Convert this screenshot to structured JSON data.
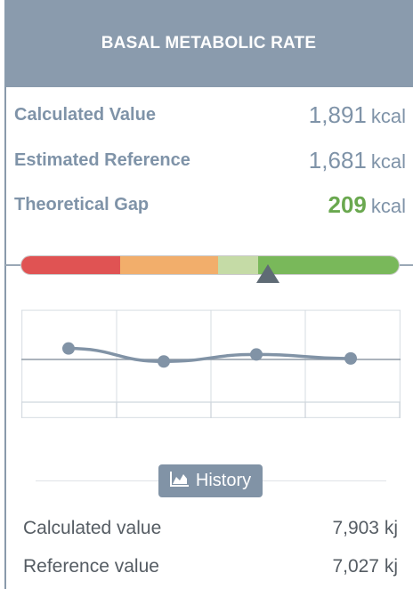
{
  "header": {
    "title": "BASAL METABOLIC RATE"
  },
  "metrics": [
    {
      "label": "Calculated Value",
      "value": "1,891",
      "unit": "kcal",
      "status": "neutral"
    },
    {
      "label": "Estimated Reference",
      "value": "1,681",
      "unit": "kcal",
      "status": "neutral"
    },
    {
      "label": "Theoretical Gap",
      "value": "209",
      "unit": "kcal",
      "status": "good"
    }
  ],
  "gauge": {
    "zones": [
      "#e05353",
      "#f2ae6b",
      "#c5dba6",
      "#79b85a"
    ],
    "marker_color": "#5f6b75",
    "marker_position_fraction": 0.65
  },
  "chart_data": {
    "type": "line",
    "x": [
      1,
      2,
      3,
      4
    ],
    "series": [
      {
        "values": [
          1.1,
          -0.2,
          0.5,
          0.1
        ]
      }
    ],
    "ylim": [
      -5,
      5
    ],
    "grid": true,
    "line_color": "#8193a6"
  },
  "history_button": {
    "label": "History",
    "icon": "area-chart-icon"
  },
  "info_rows": [
    {
      "label": "Calculated value",
      "value": "7,903 kj"
    },
    {
      "label": "Reference value",
      "value": "7,027 kj"
    }
  ],
  "colors": {
    "header_bg": "#8a9bad",
    "accent_text": "#7f93a8",
    "good": "#6aa84f"
  }
}
